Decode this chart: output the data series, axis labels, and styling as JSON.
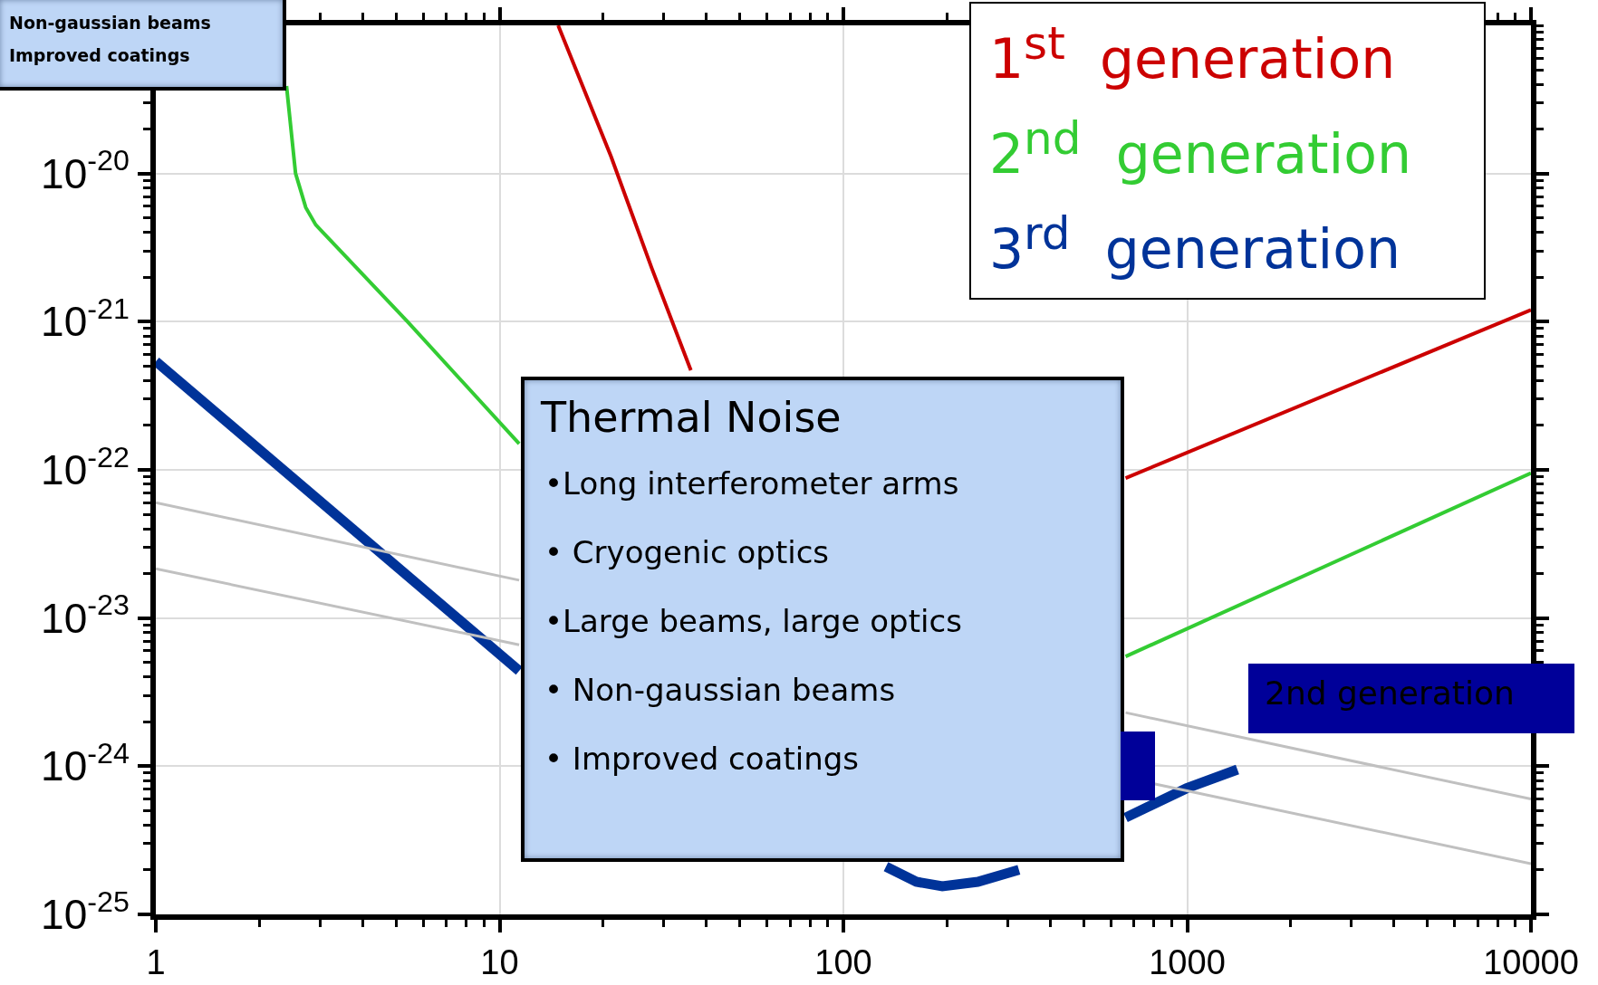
{
  "chart_data": {
    "type": "line",
    "log": "xy",
    "grid": true,
    "legend": "top right",
    "xlim": [
      1,
      10000
    ],
    "xticks": [
      1,
      10,
      100,
      1000,
      10000
    ],
    "ylim": [
      1e-25,
      1e-19
    ],
    "yticks": [
      {
        "value": 1e-25,
        "label": "10$^{-25}$"
      },
      {
        "value": 1e-24,
        "label": "10$^{-24}$"
      },
      {
        "value": 1e-23,
        "label": "10$^{-23}$"
      },
      {
        "value": 1e-22,
        "label": "10$^{-22}$"
      },
      {
        "value": 1e-21,
        "label": "10$^{-21}$"
      },
      {
        "value": 1e-20,
        "label": "10$^{-20}$"
      }
    ],
    "series": [
      {
        "name": "1$^{st}$  generation",
        "color": "#cc0000",
        "x": [
          14.8,
          21.1,
          27.7,
          36,
          200,
          662,
          10000
        ],
        "values": [
          1e-19,
          1.3e-20,
          2.3e-21,
          4.7e-22,
          null,
          8.8e-23,
          1.2e-21
        ]
      },
      {
        "name": "2$^{nd}$  generation",
        "color": "#33cc33",
        "x": [
          2.4,
          2.55,
          2.73,
          2.92,
          5.4,
          11.4,
          100,
          662,
          10000
        ],
        "values": [
          3.9e-20,
          1e-20,
          5.9e-21,
          4.5e-21,
          1e-21,
          1.5e-22,
          null,
          5.5e-24,
          9.5e-23
        ]
      },
      {
        "name": "3$^{rd}$  generation",
        "color": "#003399",
        "x": [
          1,
          11.4,
          50,
          133,
          163,
          194,
          246,
          324,
          397,
          662,
          997,
          1400
        ],
        "values": [
          5.4e-22,
          4.4e-24,
          null,
          2.1e-25,
          1.66e-25,
          1.55e-25,
          1.66e-25,
          2e-25,
          null,
          4.5e-25,
          7.1e-25,
          9.5e-25
        ]
      },
      {
        "color": "#c0c0c0",
        "x": [
          1,
          11.4,
          100,
          662,
          10000
        ],
        "values": [
          6e-23,
          1.8e-23,
          null,
          2.3e-24,
          6e-25
        ]
      },
      {
        "color": "#c0c0c0",
        "x": [
          1,
          11.4,
          100,
          801,
          10000
        ],
        "values": [
          2.15e-23,
          6.6e-24,
          null,
          7.6e-25,
          2.2e-25
        ]
      }
    ],
    "annotations": [
      "Thermal Noise",
      "•Long interferometer arms",
      "• Cryogenic optics",
      "•Large beams, large optics",
      "• Non-gaussian beams",
      "• Improved coatings",
      "Non-gaussian beams",
      "Improved coatings",
      "2nd generation"
    ]
  }
}
